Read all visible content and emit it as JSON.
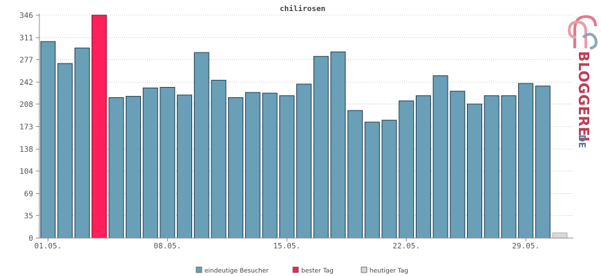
{
  "chart_data": {
    "type": "bar",
    "title": "chilirosen",
    "xlabel": "",
    "ylabel": "",
    "ylim": [
      0,
      346
    ],
    "yticks": [
      0,
      35,
      69,
      104,
      138,
      173,
      208,
      242,
      277,
      311,
      346
    ],
    "xtick_labels": [
      {
        "index": 0,
        "label": "01.05."
      },
      {
        "index": 7,
        "label": "08.05."
      },
      {
        "index": 14,
        "label": "15.05."
      },
      {
        "index": 21,
        "label": "22.05."
      },
      {
        "index": 28,
        "label": "29.05."
      }
    ],
    "grid": "horizontal dotted",
    "legend_placement": "bottom-center",
    "values": [
      305,
      271,
      295,
      346,
      218,
      220,
      233,
      234,
      222,
      288,
      245,
      218,
      226,
      225,
      221,
      239,
      282,
      289,
      198,
      180,
      183,
      213,
      221,
      252,
      228,
      208,
      221,
      221,
      240,
      236,
      8
    ],
    "best_day_index": 3,
    "today_index": 30,
    "legend": [
      {
        "label": "eindeutige Besucher",
        "color": "#6a9fb8"
      },
      {
        "label": "bester Tag",
        "color": "#ff1f5a"
      },
      {
        "label": "heutiger Tag",
        "color": "#d9d9d9"
      }
    ],
    "colors": {
      "normal": "#6a9fb8",
      "best": "#ff1f5a",
      "today": "#d9d9d9",
      "bar_stroke": "#1a3a4a",
      "grid": "#bbbbbb",
      "axis": "#888888"
    }
  },
  "branding": {
    "logo_text": "BLOGGEREI",
    "logo_suffix": ".DE"
  }
}
